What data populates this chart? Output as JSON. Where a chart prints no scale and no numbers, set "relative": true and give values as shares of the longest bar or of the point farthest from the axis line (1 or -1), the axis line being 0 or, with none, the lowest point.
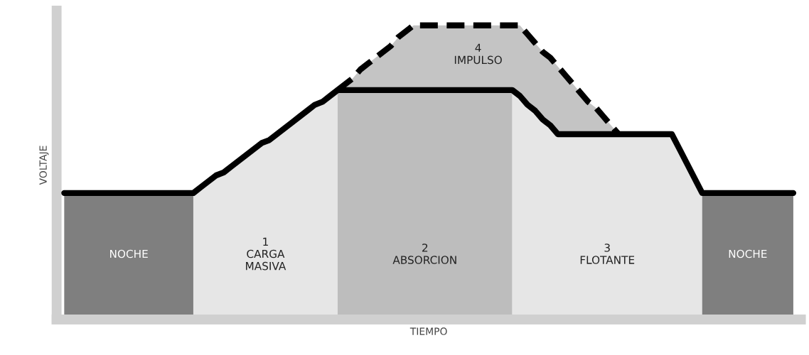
{
  "chart_data": {
    "type": "line",
    "relative": true,
    "xlabel": "TIEMPO",
    "ylabel": "VOLTAJE",
    "categories": [
      null,
      null,
      null,
      null,
      null,
      null,
      null,
      null,
      null,
      null,
      null,
      null,
      null,
      null,
      null,
      null,
      null,
      null,
      null,
      null,
      null,
      null,
      null,
      null,
      null,
      null,
      null,
      null,
      null,
      null,
      null,
      null,
      null,
      null,
      null,
      null,
      null,
      null,
      null,
      null,
      null,
      null,
      null,
      null,
      null,
      null,
      null,
      null,
      null,
      null,
      null,
      null,
      null,
      null,
      null,
      null,
      null,
      null,
      null,
      null,
      null,
      null,
      null,
      null,
      null,
      null,
      null,
      null,
      null,
      null,
      null,
      null,
      null,
      null,
      null,
      null,
      null,
      null,
      null,
      null,
      null,
      null,
      null,
      null,
      null,
      null,
      null,
      null,
      null,
      null,
      null,
      null,
      null,
      null,
      null,
      null,
      null
    ],
    "series": [
      {
        "color": "#000000",
        "line_style": "solid",
        "values": [
          0.43,
          0.43,
          0.43,
          0.43,
          0.43,
          0.43,
          0.43,
          0.43,
          0.43,
          0.43,
          0.43,
          0.43,
          0.43,
          0.43,
          0.43,
          0.43,
          0.43,
          0.43,
          0.45,
          0.47,
          0.49,
          0.5,
          0.52,
          0.54,
          0.56,
          0.58,
          0.6,
          0.61,
          0.63,
          0.65,
          0.67,
          0.69,
          0.71,
          0.73,
          0.74,
          0.76,
          0.78,
          0.78,
          0.78,
          0.78,
          0.78,
          0.78,
          0.78,
          0.78,
          0.78,
          0.78,
          0.78,
          0.78,
          0.78,
          0.78,
          0.78,
          0.78,
          0.78,
          0.78,
          0.78,
          0.78,
          0.78,
          0.78,
          0.78,
          0.78,
          0.76,
          0.73,
          0.71,
          0.68,
          0.66,
          0.63,
          0.63,
          0.63,
          0.63,
          0.63,
          0.63,
          0.63,
          0.63,
          0.63,
          0.63,
          0.63,
          0.63,
          0.63,
          0.63,
          0.63,
          0.63,
          0.58,
          0.53,
          0.48,
          0.43,
          0.43,
          0.43,
          0.43,
          0.43,
          0.43,
          0.43,
          0.43,
          0.43,
          0.43,
          0.43,
          0.43,
          0.43
        ]
      },
      {
        "color": "#000000",
        "line_style": "dashed",
        "values": [
          null,
          null,
          null,
          null,
          null,
          null,
          null,
          null,
          null,
          null,
          null,
          null,
          null,
          null,
          null,
          null,
          null,
          null,
          null,
          null,
          null,
          null,
          null,
          null,
          null,
          null,
          null,
          null,
          null,
          null,
          null,
          null,
          null,
          null,
          null,
          null,
          0.78,
          0.8,
          0.82,
          0.85,
          0.87,
          0.89,
          0.91,
          0.93,
          0.96,
          0.98,
          1,
          1,
          1,
          1,
          1,
          1,
          1,
          1,
          1,
          1,
          1,
          1,
          1,
          1,
          1,
          0.97,
          0.94,
          0.91,
          0.89,
          0.86,
          0.83,
          0.8,
          0.77,
          0.74,
          0.72,
          0.69,
          0.66,
          0.63,
          null,
          null,
          null,
          null,
          null,
          null,
          null,
          null,
          null,
          null,
          null,
          null,
          null,
          null,
          null,
          null,
          null,
          null,
          null,
          null,
          null,
          null,
          null
        ],
        "lower": [
          null,
          null,
          null,
          null,
          null,
          null,
          null,
          null,
          null,
          null,
          null,
          null,
          null,
          null,
          null,
          null,
          null,
          null,
          null,
          null,
          null,
          null,
          null,
          null,
          null,
          null,
          null,
          null,
          null,
          null,
          null,
          null,
          null,
          null,
          null,
          null,
          0.78,
          0.78,
          0.78,
          0.78,
          0.78,
          0.78,
          0.78,
          0.78,
          0.78,
          0.78,
          0.78,
          0.78,
          0.78,
          0.78,
          0.78,
          0.78,
          0.78,
          0.78,
          0.78,
          0.78,
          0.78,
          0.78,
          0.78,
          0.78,
          0.76,
          0.73,
          0.71,
          0.68,
          0.66,
          0.63,
          0.63,
          0.63,
          0.63,
          0.63,
          0.63,
          0.63,
          0.63,
          0.63,
          null,
          null,
          null,
          null,
          null,
          null,
          null,
          null,
          null,
          null,
          null,
          null,
          null,
          null,
          null,
          null,
          null,
          null,
          null,
          null,
          null,
          null,
          null
        ],
        "upper": [
          null,
          null,
          null,
          null,
          null,
          null,
          null,
          null,
          null,
          null,
          null,
          null,
          null,
          null,
          null,
          null,
          null,
          null,
          null,
          null,
          null,
          null,
          null,
          null,
          null,
          null,
          null,
          null,
          null,
          null,
          null,
          null,
          null,
          null,
          null,
          null,
          0.78,
          0.8,
          0.82,
          0.85,
          0.87,
          0.89,
          0.91,
          0.93,
          0.96,
          0.98,
          1,
          1,
          1,
          1,
          1,
          1,
          1,
          1,
          1,
          1,
          1,
          1,
          1,
          1,
          1,
          0.97,
          0.94,
          0.91,
          0.89,
          0.86,
          0.83,
          0.8,
          0.77,
          0.74,
          0.72,
          0.69,
          0.66,
          0.63,
          null,
          null,
          null,
          null,
          null,
          null,
          null,
          null,
          null,
          null,
          null,
          null,
          null,
          null,
          null,
          null,
          null,
          null,
          null,
          null,
          null,
          null,
          null
        ]
      }
    ],
    "annotations": [
      "NOCHE",
      "1\nCARGA\nMASIVA",
      "2\nABSORCION",
      "3\nFLOTANTE",
      "NOCHE",
      "4\nIMPULSO"
    ]
  }
}
